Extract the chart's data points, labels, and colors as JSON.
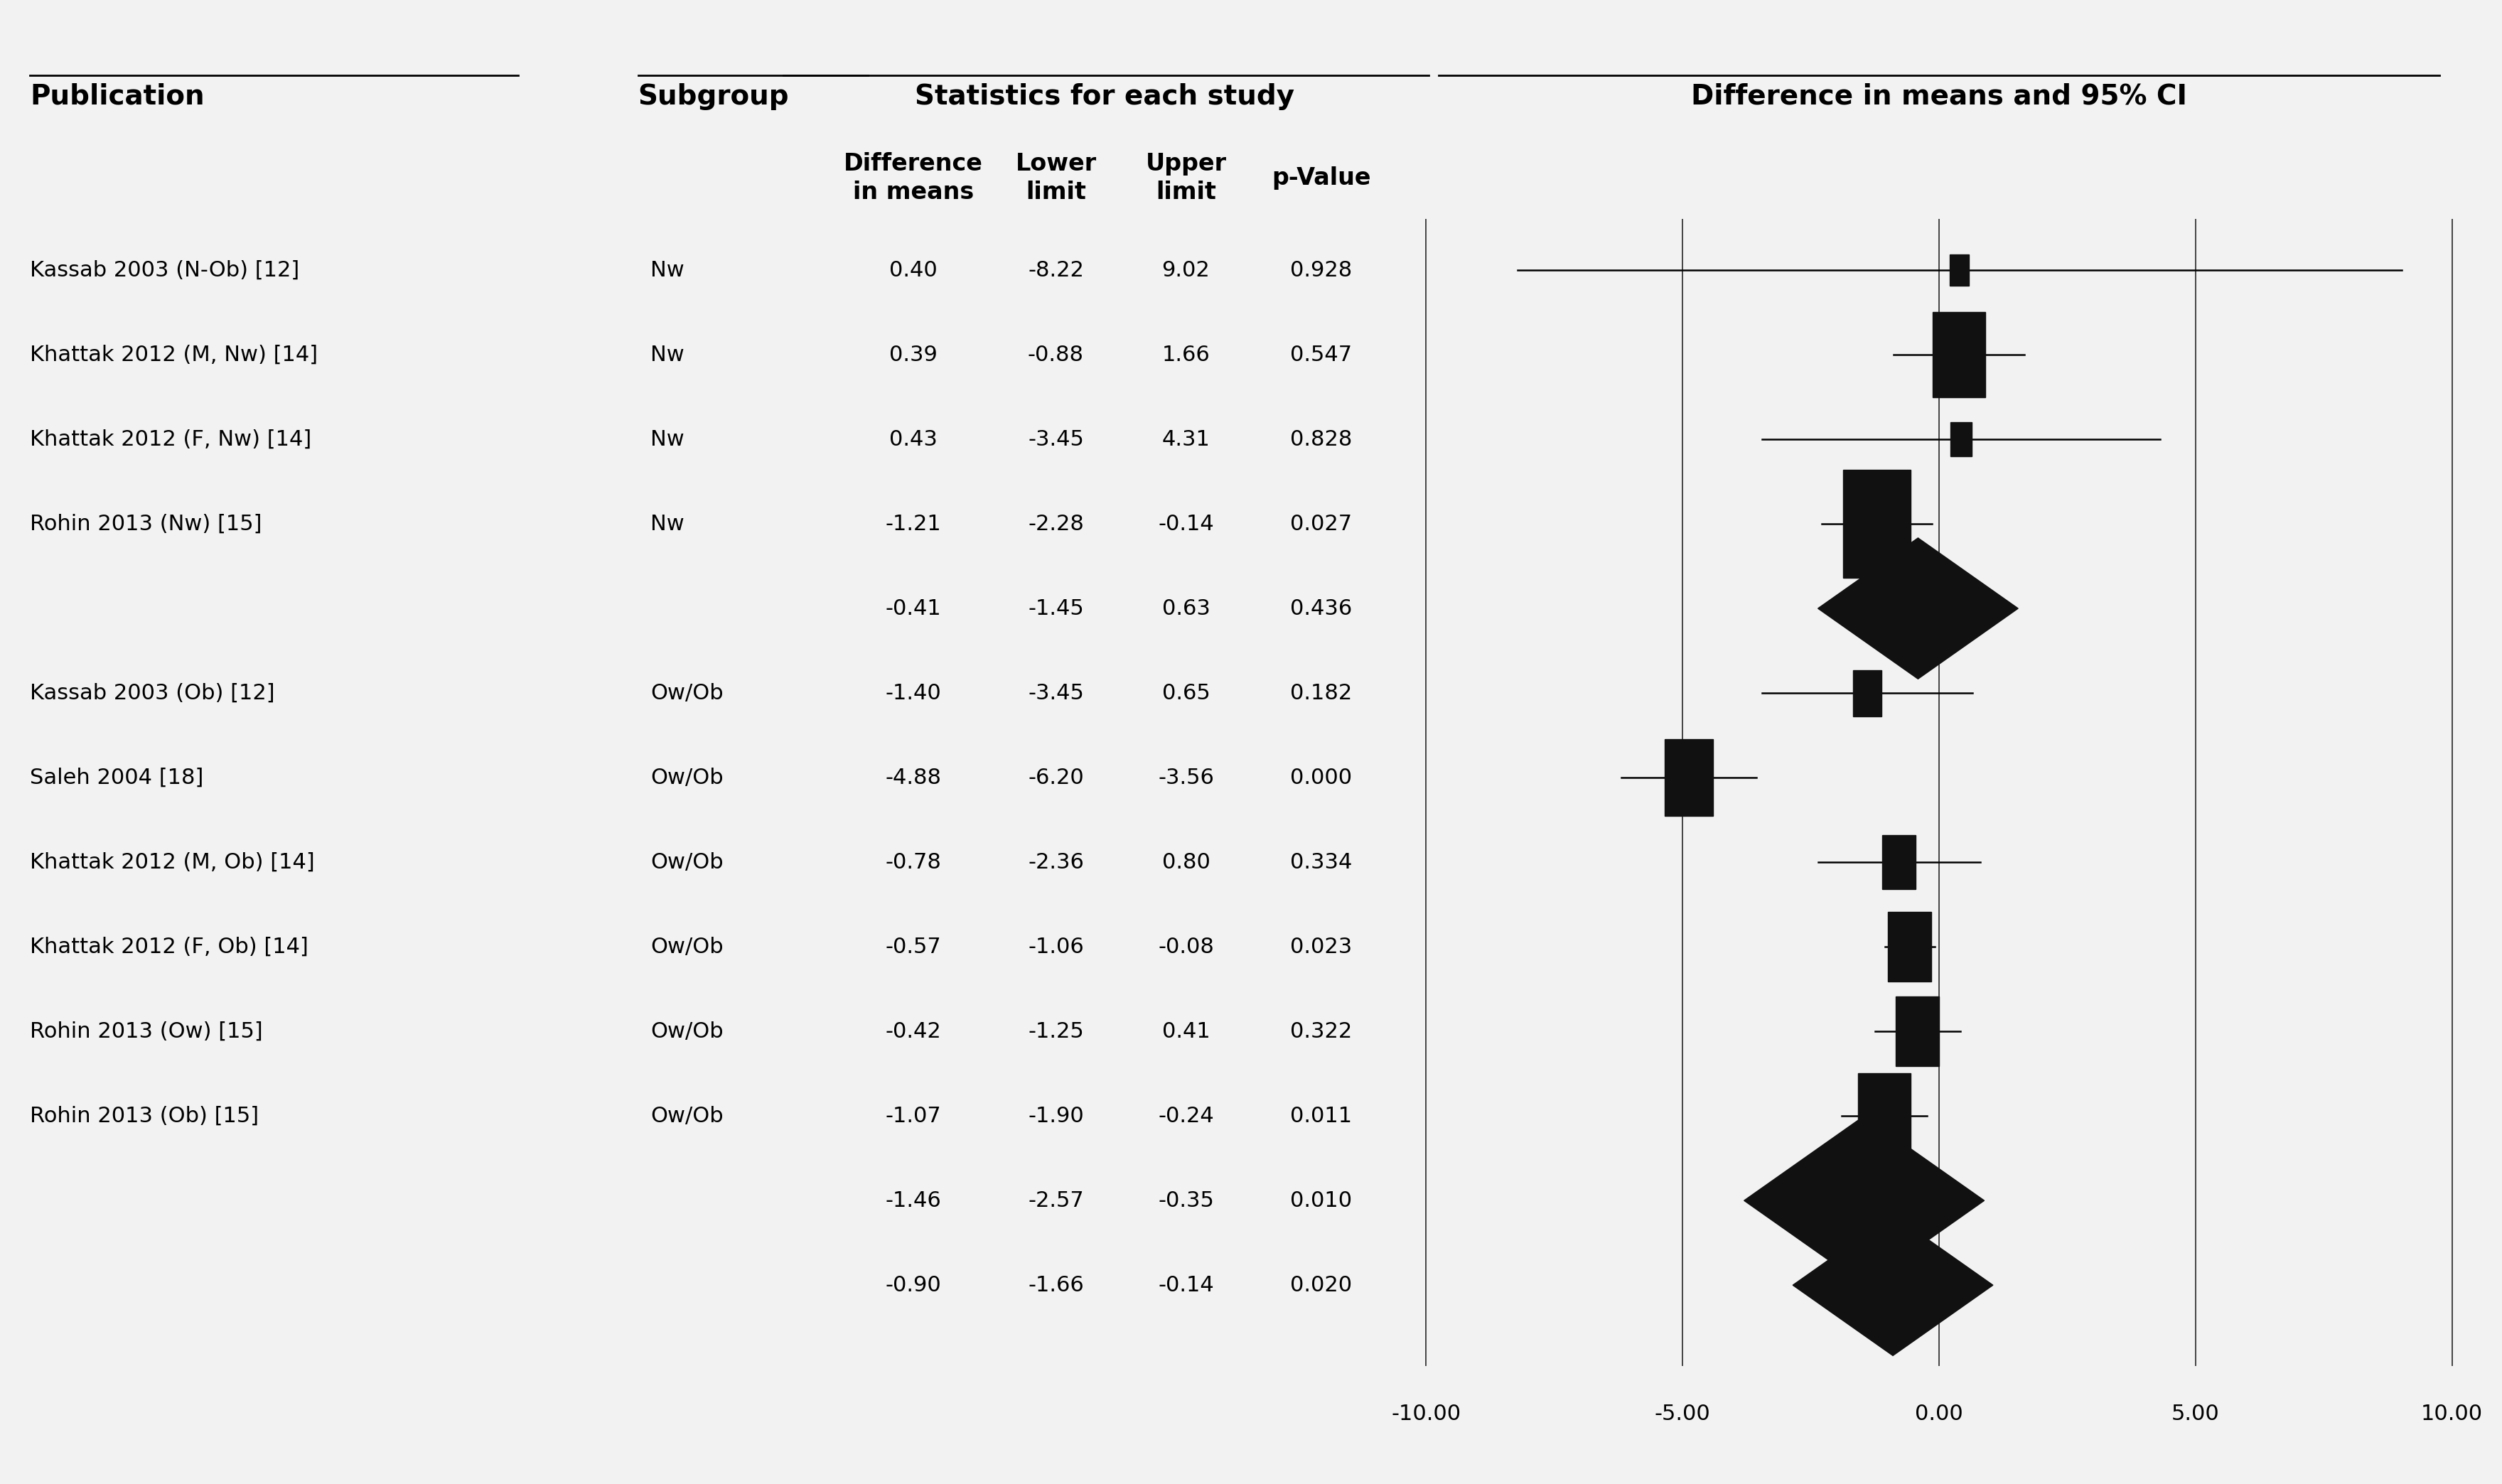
{
  "title_left": "Publication",
  "title_subgroup": "Subgroup",
  "title_stats": "Statistics for each study",
  "title_forest": "Difference in means and 95% CI",
  "studies": [
    {
      "label": "Kassab 2003 (N-Ob) [12]",
      "subgroup": "Nw",
      "mean": 0.4,
      "lower": -8.22,
      "upper": 9.02,
      "pval": "0.928",
      "shape": "square",
      "size": 0.8
    },
    {
      "label": "Khattak 2012 (M, Nw) [14]",
      "subgroup": "Nw",
      "mean": 0.39,
      "lower": -0.88,
      "upper": 1.66,
      "pval": "0.547",
      "shape": "square",
      "size": 2.2
    },
    {
      "label": "Khattak 2012 (F, Nw) [14]",
      "subgroup": "Nw",
      "mean": 0.43,
      "lower": -3.45,
      "upper": 4.31,
      "pval": "0.828",
      "shape": "square",
      "size": 0.9
    },
    {
      "label": "Rohin 2013 (Nw) [15]",
      "subgroup": "Nw",
      "mean": -1.21,
      "lower": -2.28,
      "upper": -0.14,
      "pval": "0.027",
      "shape": "square",
      "size": 2.8
    },
    {
      "label": "",
      "subgroup": "",
      "mean": -0.41,
      "lower": -1.45,
      "upper": 0.63,
      "pval": "0.436",
      "shape": "diamond",
      "size": 2.5
    },
    {
      "label": "Kassab 2003 (Ob) [12]",
      "subgroup": "Ow/Ob",
      "mean": -1.4,
      "lower": -3.45,
      "upper": 0.65,
      "pval": "0.182",
      "shape": "square",
      "size": 1.2
    },
    {
      "label": "Saleh 2004 [18]",
      "subgroup": "Ow/Ob",
      "mean": -4.88,
      "lower": -6.2,
      "upper": -3.56,
      "pval": "0.000",
      "shape": "square",
      "size": 2.0
    },
    {
      "label": "Khattak 2012 (M, Ob) [14]",
      "subgroup": "Ow/Ob",
      "mean": -0.78,
      "lower": -2.36,
      "upper": 0.8,
      "pval": "0.334",
      "shape": "square",
      "size": 1.4
    },
    {
      "label": "Khattak 2012 (F, Ob) [14]",
      "subgroup": "Ow/Ob",
      "mean": -0.57,
      "lower": -1.06,
      "upper": -0.08,
      "pval": "0.023",
      "shape": "square",
      "size": 1.8
    },
    {
      "label": "Rohin 2013 (Ow) [15]",
      "subgroup": "Ow/Ob",
      "mean": -0.42,
      "lower": -1.25,
      "upper": 0.41,
      "pval": "0.322",
      "shape": "square",
      "size": 1.8
    },
    {
      "label": "Rohin 2013 (Ob) [15]",
      "subgroup": "Ow/Ob",
      "mean": -1.07,
      "lower": -1.9,
      "upper": -0.24,
      "pval": "0.011",
      "shape": "square",
      "size": 2.2
    },
    {
      "label": "",
      "subgroup": "",
      "mean": -1.46,
      "lower": -2.57,
      "upper": -0.35,
      "pval": "0.010",
      "shape": "diamond",
      "size": 3.0
    },
    {
      "label": "",
      "subgroup": "",
      "mean": -0.9,
      "lower": -1.66,
      "upper": -0.14,
      "pval": "0.020",
      "shape": "diamond",
      "size": 2.5
    }
  ],
  "xmin": -10,
  "xmax": 10,
  "xticks": [
    -10.0,
    -5.0,
    0.0,
    5.0,
    10.0
  ],
  "xtick_labels": [
    "-10.00",
    "-5.00",
    "0.00",
    "5.00",
    "10.00"
  ],
  "bg_color": "#f2f2f2",
  "font_family": "DejaVu Sans"
}
